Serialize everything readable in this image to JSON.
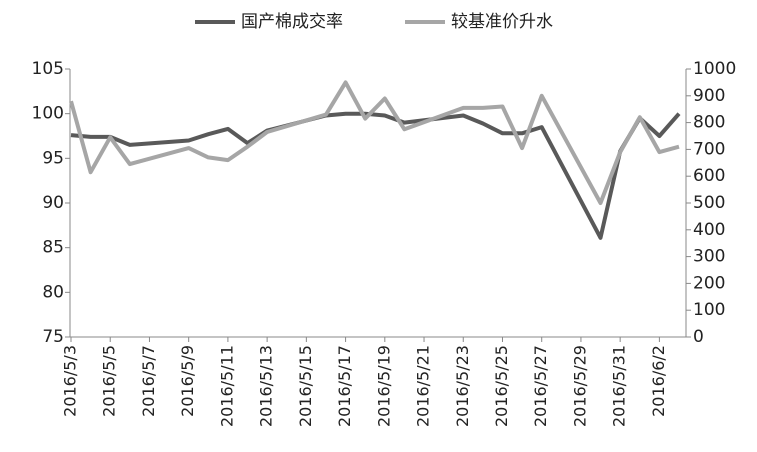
{
  "chart_data": {
    "type": "line",
    "x": [
      "2016/5/3",
      "2016/5/4",
      "2016/5/5",
      "2016/5/6",
      "2016/5/9",
      "2016/5/10",
      "2016/5/11",
      "2016/5/12",
      "2016/5/13",
      "2016/5/16",
      "2016/5/17",
      "2016/5/18",
      "2016/5/19",
      "2016/5/20",
      "2016/5/23",
      "2016/5/24",
      "2016/5/25",
      "2016/5/26",
      "2016/5/27",
      "2016/5/30",
      "2016/5/31",
      "2016/6/1",
      "2016/6/2",
      "2016/6/3"
    ],
    "xlim": [
      "2016/5/3",
      "2016/6/3"
    ],
    "xticks": [
      "2016/5/3",
      "2016/5/5",
      "2016/5/7",
      "2016/5/9",
      "2016/5/11",
      "2016/5/13",
      "2016/5/15",
      "2016/5/17",
      "2016/5/19",
      "2016/5/21",
      "2016/5/23",
      "2016/5/25",
      "2016/5/27",
      "2016/5/29",
      "2016/5/31",
      "2016/6/2"
    ],
    "series": [
      {
        "name": "国产棉成交率",
        "color": "#595959",
        "values": [
          97.6,
          97.4,
          97.4,
          96.5,
          97.0,
          97.7,
          98.3,
          96.7,
          98.1,
          99.8,
          100,
          100,
          99.8,
          99.0,
          99.8,
          98.9,
          97.8,
          97.8,
          98.5,
          86.1,
          95.8,
          99.5,
          97.5,
          100
        ]
      },
      {
        "name": "较基准价升水",
        "color": "#a6a6a6",
        "axis": "y2",
        "values": [
          880,
          615,
          745,
          645,
          705,
          670,
          660,
          710,
          765,
          830,
          950,
          815,
          890,
          775,
          855,
          855,
          860,
          705,
          900,
          500,
          690,
          820,
          690,
          710
        ]
      }
    ],
    "ylim": [
      75,
      105
    ],
    "yticks": [
      75,
      80,
      85,
      90,
      95,
      100,
      105
    ],
    "y2lim": [
      0,
      1000
    ],
    "y2ticks": [
      0,
      100,
      200,
      300,
      400,
      500,
      600,
      700,
      800,
      900,
      1000
    ],
    "legend": "top"
  }
}
